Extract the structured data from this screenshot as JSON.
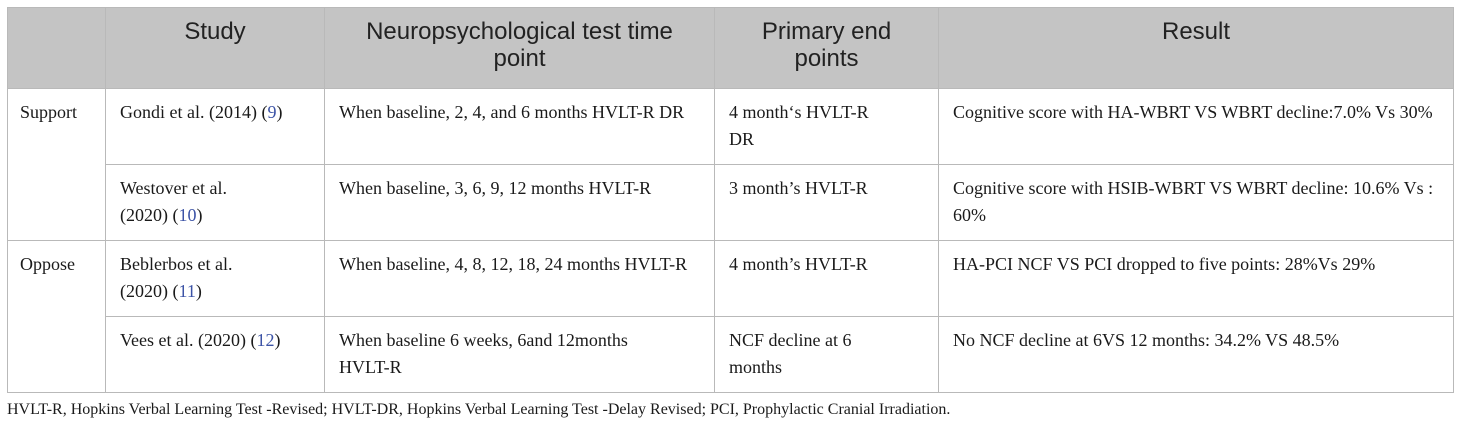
{
  "table": {
    "headers": [
      "",
      "Study",
      "Neuropsychological test time point",
      "Primary end points",
      "Result"
    ],
    "groups": [
      {
        "label": "Support",
        "rows": [
          {
            "study": "Gondi et al. (2014) (",
            "ref": "9",
            "study_tail": ")",
            "time_point": "When baseline, 2, 4, and 6 months HVLT-R DR",
            "end_point": "4 month‘s HVLT-R DR",
            "result": "Cognitive score with HA-WBRT VS WBRT decline:7.0% Vs 30%"
          },
          {
            "study": "Westover et al. (2020) (",
            "ref": "10",
            "study_tail": ")",
            "time_point": "When baseline, 3, 6, 9, 12 months HVLT-R",
            "end_point": "3 month’s HVLT-R",
            "result": "Cognitive score with HSIB-WBRT VS WBRT decline: 10.6% Vs : 60%"
          }
        ]
      },
      {
        "label": "Oppose",
        "rows": [
          {
            "study": "Beblerbos et al. (2020) (",
            "ref": "11",
            "study_tail": ")",
            "time_point": "When baseline, 4, 8, 12, 18, 24 months HVLT-R",
            "end_point": "4 month’s HVLT-R",
            "result": "HA-PCI NCF VS PCI dropped to five points: 28%Vs 29%"
          },
          {
            "study": "Vees et al. (2020) (",
            "ref": "12",
            "study_tail": ")",
            "time_point": "When baseline 6 weeks, 6and 12months HVLT-R",
            "end_point": "NCF decline at 6 months",
            "result": "No NCF decline at 6VS 12 months: 34.2% VS 48.5%"
          }
        ]
      }
    ]
  },
  "footnote": "HVLT-R, Hopkins Verbal Learning Test -Revised; HVLT-DR, Hopkins Verbal Learning Test -Delay Revised; PCI, Prophylactic Cranial Irradiation.",
  "colors": {
    "header_bg": "#c4c4c4",
    "border": "#b9b9b9",
    "ref_link": "#3c53a6"
  }
}
